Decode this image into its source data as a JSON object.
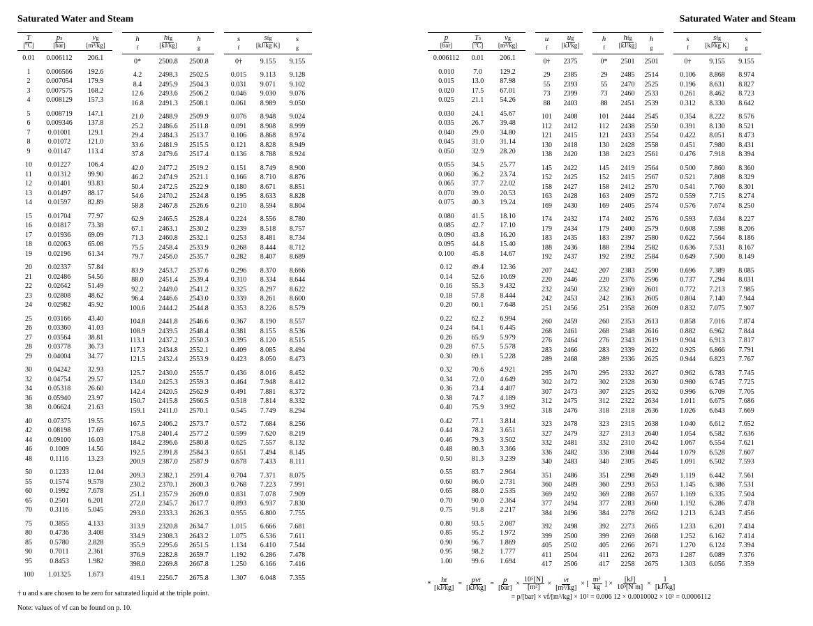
{
  "page_title": "Saturated Water and Steam",
  "headers": {
    "T": {
      "sym": "T",
      "unit": "[°C]"
    },
    "p": {
      "sym": "p",
      "sub": "s",
      "unit": "[bar]"
    },
    "vg": {
      "sym": "v",
      "sub": "g",
      "unit": "[m³/kg]"
    },
    "hf": {
      "sym": "h",
      "sub": "f",
      "unit": "[kJ/kg]"
    },
    "hfg": {
      "sym": "h",
      "sub": "fg",
      "unit": ""
    },
    "hg": {
      "sym": "h",
      "sub": "g",
      "unit": ""
    },
    "sf": {
      "sym": "s",
      "sub": "f",
      "unit": "[kJ/kg K]"
    },
    "sfg": {
      "sym": "s",
      "sub": "fg",
      "unit": ""
    },
    "sg": {
      "sym": "s",
      "sub": "g",
      "unit": ""
    },
    "pR": {
      "sym": "p",
      "unit": "[bar]"
    },
    "Ts": {
      "sym": "T",
      "sub": "s",
      "unit": "[°C]"
    },
    "uf": {
      "sym": "u",
      "sub": "f",
      "unit": "[kJ/kg]"
    },
    "ug": {
      "sym": "u",
      "sub": "g",
      "unit": ""
    }
  },
  "left_group_units": {
    "h": "[kJ/kg]",
    "s": "[kJ/kg K]"
  },
  "left": [
    [
      "0.01",
      "0.006112",
      "206.1",
      "0*",
      "2500.8",
      "2500.8",
      "0†",
      "9.155",
      "9.155"
    ],
    [
      "1",
      "0.006566",
      "192.6",
      "4.2",
      "2498.3",
      "2502.5",
      "0.015",
      "9.113",
      "9.128"
    ],
    [
      "2",
      "0.007054",
      "179.9",
      "8.4",
      "2495.9",
      "2504.3",
      "0.031",
      "9.071",
      "9.102"
    ],
    [
      "3",
      "0.007575",
      "168.2",
      "12.6",
      "2493.6",
      "2506.2",
      "0.046",
      "9.030",
      "9.076"
    ],
    [
      "4",
      "0.008129",
      "157.3",
      "16.8",
      "2491.3",
      "2508.1",
      "0.061",
      "8.989",
      "9.050"
    ],
    [
      "5",
      "0.008719",
      "147.1",
      "21.0",
      "2488.9",
      "2509.9",
      "0.076",
      "8.948",
      "9.024"
    ],
    [
      "6",
      "0.009346",
      "137.8",
      "25.2",
      "2486.6",
      "2511.8",
      "0.091",
      "8.908",
      "8.999"
    ],
    [
      "7",
      "0.01001",
      "129.1",
      "29.4",
      "2484.3",
      "2513.7",
      "0.106",
      "8.868",
      "8.974"
    ],
    [
      "8",
      "0.01072",
      "121.0",
      "33.6",
      "2481.9",
      "2515.5",
      "0.121",
      "8.828",
      "8.949"
    ],
    [
      "9",
      "0.01147",
      "113.4",
      "37.8",
      "2479.6",
      "2517.4",
      "0.136",
      "8.788",
      "8.924"
    ],
    [
      "10",
      "0.01227",
      "106.4",
      "42.0",
      "2477.2",
      "2519.2",
      "0.151",
      "8.749",
      "8.900"
    ],
    [
      "11",
      "0.01312",
      "99.90",
      "46.2",
      "2474.9",
      "2521.1",
      "0.166",
      "8.710",
      "8.876"
    ],
    [
      "12",
      "0.01401",
      "93.83",
      "50.4",
      "2472.5",
      "2522.9",
      "0.180",
      "8.671",
      "8.851"
    ],
    [
      "13",
      "0.01497",
      "88.17",
      "54.6",
      "2470.2",
      "2524.8",
      "0.195",
      "8.633",
      "8.828"
    ],
    [
      "14",
      "0.01597",
      "82.89",
      "58.8",
      "2467.8",
      "2526.6",
      "0.210",
      "8.594",
      "8.804"
    ],
    [
      "15",
      "0.01704",
      "77.97",
      "62.9",
      "2465.5",
      "2528.4",
      "0.224",
      "8.556",
      "8.780"
    ],
    [
      "16",
      "0.01817",
      "73.38",
      "67.1",
      "2463.1",
      "2530.2",
      "0.239",
      "8.518",
      "8.757"
    ],
    [
      "17",
      "0.01936",
      "69.09",
      "71.3",
      "2460.8",
      "2532.1",
      "0.253",
      "8.481",
      "8.734"
    ],
    [
      "18",
      "0.02063",
      "65.08",
      "75.5",
      "2458.4",
      "2533.9",
      "0.268",
      "8.444",
      "8.712"
    ],
    [
      "19",
      "0.02196",
      "61.34",
      "79.7",
      "2456.0",
      "2535.7",
      "0.282",
      "8.407",
      "8.689"
    ],
    [
      "20",
      "0.02337",
      "57.84",
      "83.9",
      "2453.7",
      "2537.6",
      "0.296",
      "8.370",
      "8.666"
    ],
    [
      "21",
      "0.02486",
      "54.56",
      "88.0",
      "2451.4",
      "2539.4",
      "0.310",
      "8.334",
      "8.644"
    ],
    [
      "22",
      "0.02642",
      "51.49",
      "92.2",
      "2449.0",
      "2541.2",
      "0.325",
      "8.297",
      "8.622"
    ],
    [
      "23",
      "0.02808",
      "48.62",
      "96.4",
      "2446.6",
      "2543.0",
      "0.339",
      "8.261",
      "8.600"
    ],
    [
      "24",
      "0.02982",
      "45.92",
      "100.6",
      "2444.2",
      "2544.8",
      "0.353",
      "8.226",
      "8.579"
    ],
    [
      "25",
      "0.03166",
      "43.40",
      "104.8",
      "2441.8",
      "2546.6",
      "0.367",
      "8.190",
      "8.557"
    ],
    [
      "26",
      "0.03360",
      "41.03",
      "108.9",
      "2439.5",
      "2548.4",
      "0.381",
      "8.155",
      "8.536"
    ],
    [
      "27",
      "0.03564",
      "38.81",
      "113.1",
      "2437.2",
      "2550.3",
      "0.395",
      "8.120",
      "8.515"
    ],
    [
      "28",
      "0.03778",
      "36.73",
      "117.3",
      "2434.8",
      "2552.1",
      "0.409",
      "8.085",
      "8.494"
    ],
    [
      "29",
      "0.04004",
      "34.77",
      "121.5",
      "2432.4",
      "2553.9",
      "0.423",
      "8.050",
      "8.473"
    ],
    [
      "30",
      "0.04242",
      "32.93",
      "125.7",
      "2430.0",
      "2555.7",
      "0.436",
      "8.016",
      "8.452"
    ],
    [
      "32",
      "0.04754",
      "29.57",
      "134.0",
      "2425.3",
      "2559.3",
      "0.464",
      "7.948",
      "8.412"
    ],
    [
      "34",
      "0.05318",
      "26.60",
      "142.4",
      "2420.5",
      "2562.9",
      "0.491",
      "7.881",
      "8.372"
    ],
    [
      "36",
      "0.05940",
      "23.97",
      "150.7",
      "2415.8",
      "2566.5",
      "0.518",
      "7.814",
      "8.332"
    ],
    [
      "38",
      "0.06624",
      "21.63",
      "159.1",
      "2411.0",
      "2570.1",
      "0.545",
      "7.749",
      "8.294"
    ],
    [
      "40",
      "0.07375",
      "19.55",
      "167.5",
      "2406.2",
      "2573.7",
      "0.572",
      "7.684",
      "8.256"
    ],
    [
      "42",
      "0.08198",
      "17.69",
      "175.8",
      "2401.4",
      "2577.2",
      "0.599",
      "7.620",
      "8.219"
    ],
    [
      "44",
      "0.09100",
      "16.03",
      "184.2",
      "2396.6",
      "2580.8",
      "0.625",
      "7.557",
      "8.132"
    ],
    [
      "46",
      "0.1009",
      "14.56",
      "192.5",
      "2391.8",
      "2584.3",
      "0.651",
      "7.494",
      "8.145"
    ],
    [
      "48",
      "0.1116",
      "13.23",
      "200.9",
      "2387.0",
      "2587.9",
      "0.678",
      "7.433",
      "8.111"
    ],
    [
      "50",
      "0.1233",
      "12.04",
      "209.3",
      "2382.1",
      "2591.4",
      "0.704",
      "7.371",
      "8.075"
    ],
    [
      "55",
      "0.1574",
      "9.578",
      "230.2",
      "2370.1",
      "2600.3",
      "0.768",
      "7.223",
      "7.991"
    ],
    [
      "60",
      "0.1992",
      "7.678",
      "251.1",
      "2357.9",
      "2609.0",
      "0.831",
      "7.078",
      "7.909"
    ],
    [
      "65",
      "0.2501",
      "6.201",
      "272.0",
      "2345.7",
      "2617.7",
      "0.893",
      "6.937",
      "7.830"
    ],
    [
      "70",
      "0.3116",
      "5.045",
      "293.0",
      "2333.3",
      "2626.3",
      "0.955",
      "6.800",
      "7.755"
    ],
    [
      "75",
      "0.3855",
      "4.133",
      "313.9",
      "2320.8",
      "2634.7",
      "1.015",
      "6.666",
      "7.681"
    ],
    [
      "80",
      "0.4736",
      "3.408",
      "334.9",
      "2308.3",
      "2643.2",
      "1.075",
      "6.536",
      "7.611"
    ],
    [
      "85",
      "0.5780",
      "2.828",
      "355.9",
      "2295.6",
      "2651.5",
      "1.134",
      "6.410",
      "7.544"
    ],
    [
      "90",
      "0.7011",
      "2.361",
      "376.9",
      "2282.8",
      "2659.7",
      "1.192",
      "6.286",
      "7.478"
    ],
    [
      "95",
      "0.8453",
      "1.982",
      "398.0",
      "2269.8",
      "2667.8",
      "1.250",
      "6.166",
      "7.416"
    ],
    [
      "100",
      "1.01325",
      "1.673",
      "419.1",
      "2256.7",
      "2675.8",
      "1.307",
      "6.048",
      "7.355"
    ]
  ],
  "left_breaks": [
    0,
    4,
    9,
    14,
    19,
    24,
    29,
    34,
    39,
    44,
    49
  ],
  "right": [
    [
      "0.006112",
      "0.01",
      "206.1",
      "0†",
      "2375",
      "0*",
      "2501",
      "2501",
      "0†",
      "9.155",
      "9.155"
    ],
    [
      "0.010",
      "7.0",
      "129.2",
      "29",
      "2385",
      "29",
      "2485",
      "2514",
      "0.106",
      "8.868",
      "8.974"
    ],
    [
      "0.015",
      "13.0",
      "87.98",
      "55",
      "2393",
      "55",
      "2470",
      "2525",
      "0.196",
      "8.631",
      "8.827"
    ],
    [
      "0.020",
      "17.5",
      "67.01",
      "73",
      "2399",
      "73",
      "2460",
      "2533",
      "0.261",
      "8.462",
      "8.723"
    ],
    [
      "0.025",
      "21.1",
      "54.26",
      "88",
      "2403",
      "88",
      "2451",
      "2539",
      "0.312",
      "8.330",
      "8.642"
    ],
    [
      "0.030",
      "24.1",
      "45.67",
      "101",
      "2408",
      "101",
      "2444",
      "2545",
      "0.354",
      "8.222",
      "8.576"
    ],
    [
      "0.035",
      "26.7",
      "39.48",
      "112",
      "2412",
      "112",
      "2438",
      "2550",
      "0.391",
      "8.130",
      "8.521"
    ],
    [
      "0.040",
      "29.0",
      "34.80",
      "121",
      "2415",
      "121",
      "2433",
      "2554",
      "0.422",
      "8.051",
      "8.473"
    ],
    [
      "0.045",
      "31.0",
      "31.14",
      "130",
      "2418",
      "130",
      "2428",
      "2558",
      "0.451",
      "7.980",
      "8.431"
    ],
    [
      "0.050",
      "32.9",
      "28.20",
      "138",
      "2420",
      "138",
      "2423",
      "2561",
      "0.476",
      "7.918",
      "8.394"
    ],
    [
      "0.055",
      "34.5",
      "25.77",
      "145",
      "2422",
      "145",
      "2419",
      "2564",
      "0.500",
      "7.860",
      "8.360"
    ],
    [
      "0.060",
      "36.2",
      "23.74",
      "152",
      "2425",
      "152",
      "2415",
      "2567",
      "0.521",
      "7.808",
      "8.329"
    ],
    [
      "0.065",
      "37.7",
      "22.02",
      "158",
      "2427",
      "158",
      "2412",
      "2570",
      "0.541",
      "7.760",
      "8.301"
    ],
    [
      "0.070",
      "39.0",
      "20.53",
      "163",
      "2428",
      "163",
      "2409",
      "2572",
      "0.559",
      "7.715",
      "8.274"
    ],
    [
      "0.075",
      "40.3",
      "19.24",
      "169",
      "2430",
      "169",
      "2405",
      "2574",
      "0.576",
      "7.674",
      "8.250"
    ],
    [
      "0.080",
      "41.5",
      "18.10",
      "174",
      "2432",
      "174",
      "2402",
      "2576",
      "0.593",
      "7.634",
      "8.227"
    ],
    [
      "0.085",
      "42.7",
      "17.10",
      "179",
      "2434",
      "179",
      "2400",
      "2579",
      "0.608",
      "7.598",
      "8.206"
    ],
    [
      "0.090",
      "43.8",
      "16.20",
      "183",
      "2435",
      "183",
      "2397",
      "2580",
      "0.622",
      "7.564",
      "8.186"
    ],
    [
      "0.095",
      "44.8",
      "15.40",
      "188",
      "2436",
      "188",
      "2394",
      "2582",
      "0.636",
      "7.531",
      "8.167"
    ],
    [
      "0.100",
      "45.8",
      "14.67",
      "192",
      "2437",
      "192",
      "2392",
      "2584",
      "0.649",
      "7.500",
      "8.149"
    ],
    [
      "0.12",
      "49.4",
      "12.36",
      "207",
      "2442",
      "207",
      "2383",
      "2590",
      "0.696",
      "7.389",
      "8.085"
    ],
    [
      "0.14",
      "52.6",
      "10.69",
      "220",
      "2446",
      "220",
      "2376",
      "2596",
      "0.737",
      "7.294",
      "8.031"
    ],
    [
      "0.16",
      "55.3",
      "9.432",
      "232",
      "2450",
      "232",
      "2369",
      "2601",
      "0.772",
      "7.213",
      "7.985"
    ],
    [
      "0.18",
      "57.8",
      "8.444",
      "242",
      "2453",
      "242",
      "2363",
      "2605",
      "0.804",
      "7.140",
      "7.944"
    ],
    [
      "0.20",
      "60.1",
      "7.648",
      "251",
      "2456",
      "251",
      "2358",
      "2609",
      "0.832",
      "7.075",
      "7.907"
    ],
    [
      "0.22",
      "62.2",
      "6.994",
      "260",
      "2459",
      "260",
      "2353",
      "2613",
      "0.858",
      "7.016",
      "7.874"
    ],
    [
      "0.24",
      "64.1",
      "6.445",
      "268",
      "2461",
      "268",
      "2348",
      "2616",
      "0.882",
      "6.962",
      "7.844"
    ],
    [
      "0.26",
      "65.9",
      "5.979",
      "276",
      "2464",
      "276",
      "2343",
      "2619",
      "0.904",
      "6.913",
      "7.817"
    ],
    [
      "0.28",
      "67.5",
      "5.578",
      "283",
      "2466",
      "283",
      "2339",
      "2622",
      "0.925",
      "6.866",
      "7.791"
    ],
    [
      "0.30",
      "69.1",
      "5.228",
      "289",
      "2468",
      "289",
      "2336",
      "2625",
      "0.944",
      "6.823",
      "7.767"
    ],
    [
      "0.32",
      "70.6",
      "4.921",
      "295",
      "2470",
      "295",
      "2332",
      "2627",
      "0.962",
      "6.783",
      "7.745"
    ],
    [
      "0.34",
      "72.0",
      "4.649",
      "302",
      "2472",
      "302",
      "2328",
      "2630",
      "0.980",
      "6.745",
      "7.725"
    ],
    [
      "0.36",
      "73.4",
      "4.407",
      "307",
      "2473",
      "307",
      "2325",
      "2632",
      "0.996",
      "6.709",
      "7.705"
    ],
    [
      "0.38",
      "74.7",
      "4.189",
      "312",
      "2475",
      "312",
      "2322",
      "2634",
      "1.011",
      "6.675",
      "7.686"
    ],
    [
      "0.40",
      "75.9",
      "3.992",
      "318",
      "2476",
      "318",
      "2318",
      "2636",
      "1.026",
      "6.643",
      "7.669"
    ],
    [
      "0.42",
      "77.1",
      "3.814",
      "323",
      "2478",
      "323",
      "2315",
      "2638",
      "1.040",
      "6.612",
      "7.652"
    ],
    [
      "0.44",
      "78.2",
      "3.651",
      "327",
      "2479",
      "327",
      "2313",
      "2640",
      "1.054",
      "6.582",
      "7.636"
    ],
    [
      "0.46",
      "79.3",
      "3.502",
      "332",
      "2481",
      "332",
      "2310",
      "2642",
      "1.067",
      "6.554",
      "7.621"
    ],
    [
      "0.48",
      "80.3",
      "3.366",
      "336",
      "2482",
      "336",
      "2308",
      "2644",
      "1.079",
      "6.528",
      "7.607"
    ],
    [
      "0.50",
      "81.3",
      "3.239",
      "340",
      "2483",
      "340",
      "2305",
      "2645",
      "1.091",
      "6.502",
      "7.593"
    ],
    [
      "0.55",
      "83.7",
      "2.964",
      "351",
      "2486",
      "351",
      "2298",
      "2649",
      "1.119",
      "6.442",
      "7.561"
    ],
    [
      "0.60",
      "86.0",
      "2.731",
      "360",
      "2489",
      "360",
      "2293",
      "2653",
      "1.145",
      "6.386",
      "7.531"
    ],
    [
      "0.65",
      "88.0",
      "2.535",
      "369",
      "2492",
      "369",
      "2288",
      "2657",
      "1.169",
      "6.335",
      "7.504"
    ],
    [
      "0.70",
      "90.0",
      "2.364",
      "377",
      "2494",
      "377",
      "2283",
      "2660",
      "1.192",
      "6.286",
      "7.478"
    ],
    [
      "0.75",
      "91.8",
      "2.217",
      "384",
      "2496",
      "384",
      "2278",
      "2662",
      "1.213",
      "6.243",
      "7.456"
    ],
    [
      "0.80",
      "93.5",
      "2.087",
      "392",
      "2498",
      "392",
      "2273",
      "2665",
      "1.233",
      "6.201",
      "7.434"
    ],
    [
      "0.85",
      "95.2",
      "1.972",
      "399",
      "2500",
      "399",
      "2269",
      "2668",
      "1.252",
      "6.162",
      "7.414"
    ],
    [
      "0.90",
      "96.7",
      "1.869",
      "405",
      "2502",
      "405",
      "2266",
      "2671",
      "1.270",
      "6.124",
      "7.394"
    ],
    [
      "0.95",
      "98.2",
      "1.777",
      "411",
      "2504",
      "411",
      "2262",
      "2673",
      "1.287",
      "6.089",
      "7.376"
    ],
    [
      "1.00",
      "99.6",
      "1.694",
      "417",
      "2506",
      "417",
      "2258",
      "2675",
      "1.303",
      "6.056",
      "7.359"
    ]
  ],
  "right_breaks": [
    0,
    4,
    9,
    14,
    19,
    24,
    29,
    34,
    39,
    44
  ],
  "footnotes": {
    "f1": "† u and s are chosen to be zero for saturated liquid at the triple point.",
    "f2": "Note: values of vf can be found on p. 10."
  },
  "equation": {
    "star": "*",
    "eq1_parts": [
      "hf",
      "pvf",
      "p",
      "10⁵[N]",
      "vf",
      "m³",
      "[kJ]",
      "1"
    ],
    "eq1_dens": [
      "[kJ/kg]",
      "[kJ/kg]",
      "[bar]",
      "[m²]",
      "[m³/kg]",
      "kg",
      "10³[N m]",
      "[kJ/kg]"
    ],
    "line2": "= p/[bar] × vf/[m³/kg] × 10² = 0.006 12 × 0.0010002 × 10² = 0.0006112"
  }
}
